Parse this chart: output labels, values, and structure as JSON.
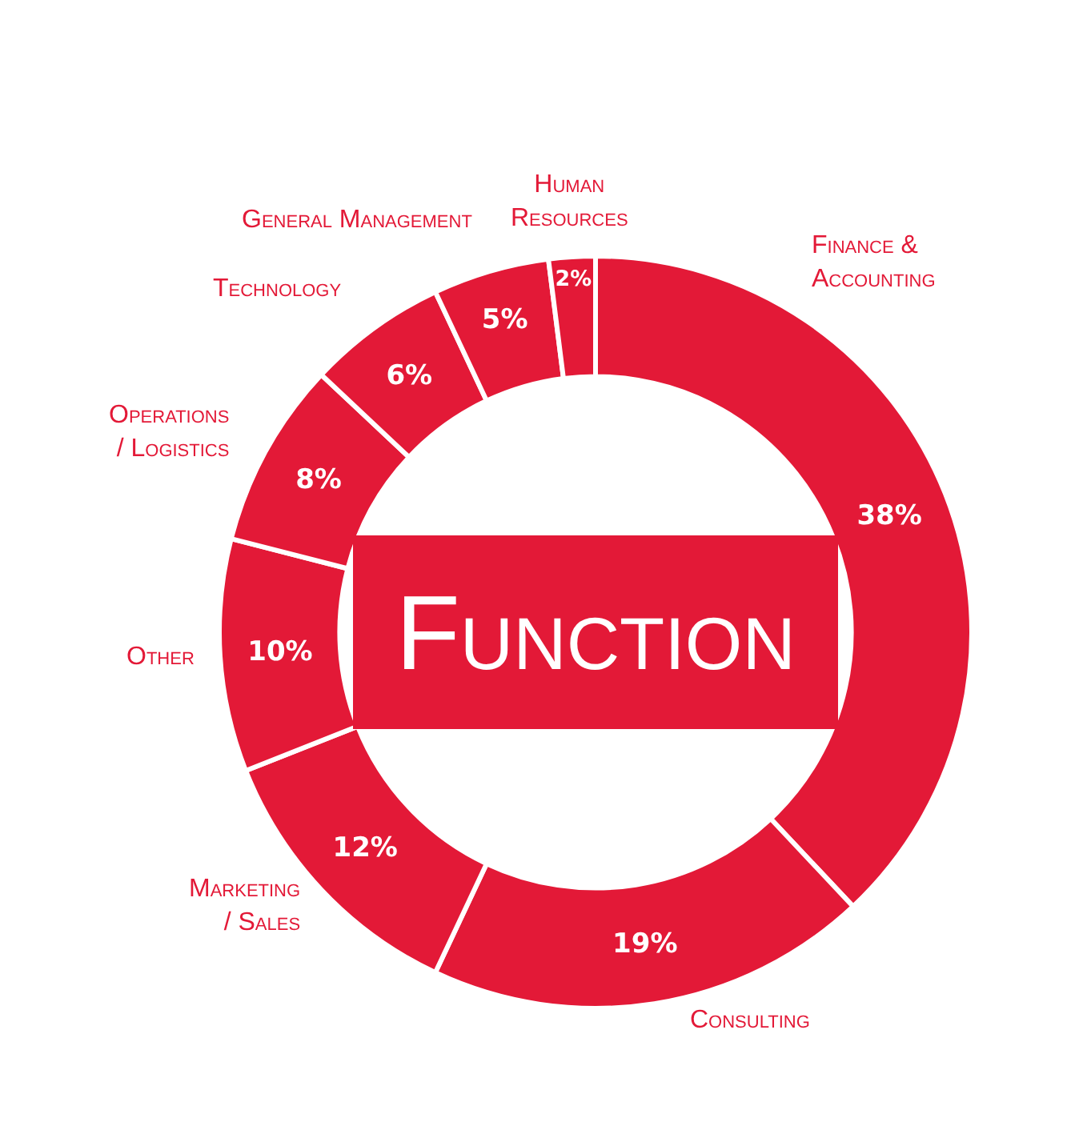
{
  "chart_data": {
    "type": "donut",
    "title": "Function",
    "categories": [
      "Finance &\nAccounting",
      "Consulting",
      "Marketing\n/ Sales",
      "Other",
      "Operations\n/ Logistics",
      "Technology",
      "General Management",
      "Human\nResources"
    ],
    "values": [
      38,
      19,
      12,
      10,
      8,
      6,
      5,
      2
    ],
    "value_labels": [
      "38%",
      "19%",
      "12%",
      "10%",
      "8%",
      "6%",
      "5%",
      "2%"
    ],
    "colors": [
      "#e31937",
      "#e31937",
      "#e31937",
      "#e31937",
      "#e31937",
      "#e31937",
      "#e31937",
      "#e31937"
    ]
  }
}
